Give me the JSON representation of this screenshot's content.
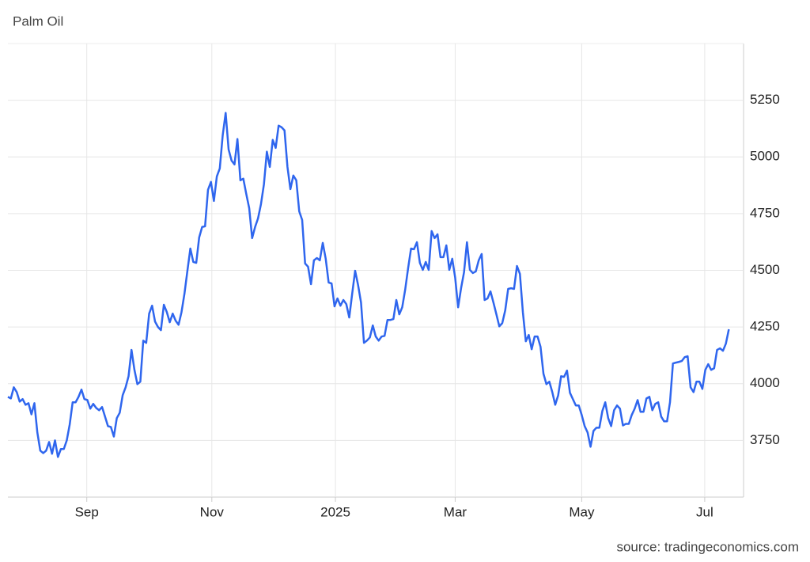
{
  "chart_data": {
    "type": "line",
    "title": "Palm Oil",
    "source": "source: tradingeconomics.com",
    "color": "#2f66ee",
    "grid": true,
    "values": [
      3942,
      3935,
      3984,
      3963,
      3921,
      3932,
      3907,
      3914,
      3865,
      3914,
      3785,
      3705,
      3694,
      3705,
      3743,
      3691,
      3750,
      3677,
      3712,
      3712,
      3750,
      3820,
      3918,
      3918,
      3942,
      3974,
      3932,
      3928,
      3890,
      3911,
      3893,
      3883,
      3897,
      3855,
      3813,
      3809,
      3767,
      3848,
      3872,
      3949,
      3984,
      4033,
      4149,
      4061,
      3998,
      4009,
      4190,
      4180,
      4309,
      4344,
      4274,
      4250,
      4236,
      4348,
      4316,
      4271,
      4309,
      4278,
      4260,
      4316,
      4397,
      4498,
      4596,
      4537,
      4533,
      4645,
      4691,
      4694,
      4855,
      4890,
      4806,
      4914,
      4949,
      5096,
      5194,
      5033,
      4984,
      4967,
      5079,
      4897,
      4904,
      4837,
      4774,
      4642,
      4691,
      4729,
      4792,
      4879,
      5023,
      4956,
      5075,
      5040,
      5138,
      5131,
      5117,
      4956,
      4858,
      4918,
      4897,
      4760,
      4722,
      4530,
      4516,
      4439,
      4544,
      4554,
      4544,
      4621,
      4551,
      4446,
      4442,
      4341,
      4376,
      4344,
      4369,
      4351,
      4292,
      4397,
      4498,
      4435,
      4358,
      4180,
      4190,
      4204,
      4257,
      4208,
      4190,
      4208,
      4211,
      4281,
      4281,
      4285,
      4369,
      4306,
      4337,
      4414,
      4509,
      4596,
      4593,
      4624,
      4533,
      4502,
      4537,
      4502,
      4673,
      4642,
      4659,
      4558,
      4558,
      4610,
      4502,
      4551,
      4467,
      4337,
      4421,
      4491,
      4624,
      4502,
      4488,
      4495,
      4544,
      4572,
      4369,
      4376,
      4407,
      4358,
      4306,
      4253,
      4267,
      4323,
      4418,
      4421,
      4418,
      4519,
      4484,
      4316,
      4187,
      4215,
      4152,
      4208,
      4208,
      4163,
      4044,
      3998,
      4009,
      3963,
      3907,
      3949,
      4033,
      4030,
      4058,
      3960,
      3932,
      3904,
      3904,
      3862,
      3813,
      3785,
      3722,
      3792,
      3806,
      3806,
      3879,
      3918,
      3848,
      3813,
      3883,
      3904,
      3890,
      3816,
      3823,
      3823,
      3862,
      3890,
      3928,
      3876,
      3876,
      3935,
      3942,
      3883,
      3911,
      3918,
      3855,
      3834,
      3834,
      3918,
      4089,
      4093,
      4096,
      4100,
      4117,
      4121,
      3984,
      3963,
      4009,
      4009,
      3977,
      4061,
      4086,
      4061,
      4068,
      4149,
      4156,
      4145,
      4177,
      4240
    ],
    "xlim": [
      0,
      250
    ],
    "xticks": [
      {
        "value": 26.8,
        "label": "Sep"
      },
      {
        "value": 69.3,
        "label": "Nov"
      },
      {
        "value": 111.3,
        "label": "2025"
      },
      {
        "value": 152,
        "label": "Mar"
      },
      {
        "value": 195,
        "label": "May"
      },
      {
        "value": 236.8,
        "label": "Jul"
      }
    ],
    "ylim": [
      3500,
      5500
    ],
    "yticks": [
      3750,
      4000,
      4250,
      4500,
      4750,
      5000,
      5250
    ]
  }
}
